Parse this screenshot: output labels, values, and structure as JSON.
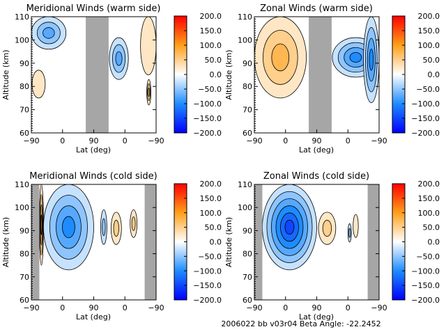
{
  "footer": "2006022 bb v03r04   Beta Angle: -22.2452",
  "chart_data": [
    {
      "type": "heatmap",
      "title": "Meridional Winds (warm side)",
      "xlabel": "Lat (deg)",
      "ylabel": "Altitude (km)",
      "x_tick_labels": [
        "-90",
        "0",
        "90",
        "0",
        "-90"
      ],
      "y_tick_labels": [
        "60",
        "70",
        "80",
        "90",
        "100",
        "110"
      ],
      "ylim": [
        60,
        110
      ],
      "missing_band_lat": [
        67,
        133
      ],
      "colorbar": {
        "labels": [
          "200.0",
          "150.0",
          "100.0",
          "50.0",
          "0.0",
          "-50.0",
          "-100.0",
          "-150.0",
          "-200.0"
        ],
        "range": [
          -200,
          200
        ]
      },
      "features": [
        {
          "kind": "neg",
          "lat": [
            -90,
            10
          ],
          "alt": [
            96,
            110
          ],
          "peak": -80
        },
        {
          "kind": "pos",
          "lat": [
            -88,
            -50
          ],
          "alt": [
            75,
            87
          ],
          "peak": 25
        },
        {
          "kind": "neg",
          "lat": [
            135,
            190
          ],
          "alt": [
            83,
            101
          ],
          "peak": -80
        },
        {
          "kind": "pos",
          "lat": [
            225,
            270
          ],
          "alt": [
            85,
            110
          ],
          "peak": 25
        },
        {
          "kind": "pos",
          "lat": [
            243,
            255
          ],
          "alt": [
            72,
            83
          ],
          "peak": 80
        }
      ]
    },
    {
      "type": "heatmap",
      "title": "Zonal Winds (warm side)",
      "xlabel": "Lat (deg)",
      "ylabel": "Altitude (km)",
      "x_tick_labels": [
        "-90",
        "0",
        "90",
        "0",
        "-90"
      ],
      "y_tick_labels": [
        "60",
        "70",
        "80",
        "90",
        "100",
        "110"
      ],
      "ylim": [
        60,
        110
      ],
      "missing_band_lat": [
        67,
        133
      ],
      "colorbar": {
        "labels": [
          "200.0",
          "150.0",
          "100.0",
          "50.0",
          "0.0",
          "-50.0",
          "-100.0",
          "-150.0",
          "-200.0"
        ],
        "range": [
          -200,
          200
        ]
      },
      "features": [
        {
          "kind": "pos",
          "lat": [
            -90,
            60
          ],
          "alt": [
            75,
            110
          ],
          "peak": 70
        },
        {
          "kind": "neg",
          "lat": [
            135,
            270
          ],
          "alt": [
            84,
            101
          ],
          "peak": -90
        },
        {
          "kind": "neg",
          "lat": [
            225,
            270
          ],
          "alt": [
            73,
            110
          ],
          "peak": -100
        }
      ]
    },
    {
      "type": "heatmap",
      "title": "Meridional Winds (cold side)",
      "xlabel": "Lat (deg)",
      "ylabel": "Altitude (km)",
      "x_tick_labels": [
        "-90",
        "0",
        "90",
        "0",
        "-90"
      ],
      "y_tick_labels": [
        "60",
        "70",
        "80",
        "90",
        "100",
        "110"
      ],
      "ylim": [
        60,
        110
      ],
      "missing_band_lat": [
        [
          -90,
          -67
        ],
        [
          237,
          270
        ]
      ],
      "colorbar": {
        "labels": [
          "200.0",
          "150.0",
          "100.0",
          "50.0",
          "0.0",
          "-50.0",
          "-100.0",
          "-150.0",
          "-200.0"
        ],
        "range": [
          -200,
          200
        ]
      },
      "features": [
        {
          "kind": "pos",
          "lat": [
            -67,
            -55
          ],
          "alt": [
            75,
            110
          ],
          "peak": 100
        },
        {
          "kind": "neg",
          "lat": [
            -55,
            90
          ],
          "alt": [
            73,
            110
          ],
          "peak": -110
        },
        {
          "kind": "pos",
          "lat": [
            140,
            170
          ],
          "alt": [
            84,
            98
          ],
          "peak": 60
        },
        {
          "kind": "pos",
          "lat": [
            195,
            215
          ],
          "alt": [
            87,
            99
          ],
          "peak": 60
        },
        {
          "kind": "neg",
          "lat": [
            110,
            128
          ],
          "alt": [
            84,
            99
          ],
          "peak": -40
        }
      ]
    },
    {
      "type": "heatmap",
      "title": "Zonal Winds (cold side)",
      "xlabel": "Lat (deg)",
      "ylabel": "Altitude (km)",
      "x_tick_labels": [
        "-90",
        "0",
        "90",
        "0",
        "-90"
      ],
      "y_tick_labels": [
        "60",
        "70",
        "80",
        "90",
        "100",
        "110"
      ],
      "ylim": [
        60,
        110
      ],
      "missing_band_lat": [
        [
          -90,
          -67
        ],
        [
          237,
          270
        ]
      ],
      "colorbar": {
        "labels": [
          "200.0",
          "150.0",
          "100.0",
          "50.0",
          "0.0",
          "-50.0",
          "-100.0",
          "-150.0",
          "-200.0"
        ],
        "range": [
          -200,
          200
        ]
      },
      "features": [
        {
          "kind": "neg",
          "lat": [
            -67,
            90
          ],
          "alt": [
            73,
            110
          ],
          "peak": -150
        },
        {
          "kind": "pos",
          "lat": [
            95,
            145
          ],
          "alt": [
            84,
            98
          ],
          "peak": 50
        },
        {
          "kind": "pos",
          "lat": [
            195,
            210
          ],
          "alt": [
            87,
            97
          ],
          "peak": 25
        },
        {
          "kind": "neg",
          "lat": [
            180,
            190
          ],
          "alt": [
            85,
            93
          ],
          "peak": -40
        }
      ]
    }
  ]
}
